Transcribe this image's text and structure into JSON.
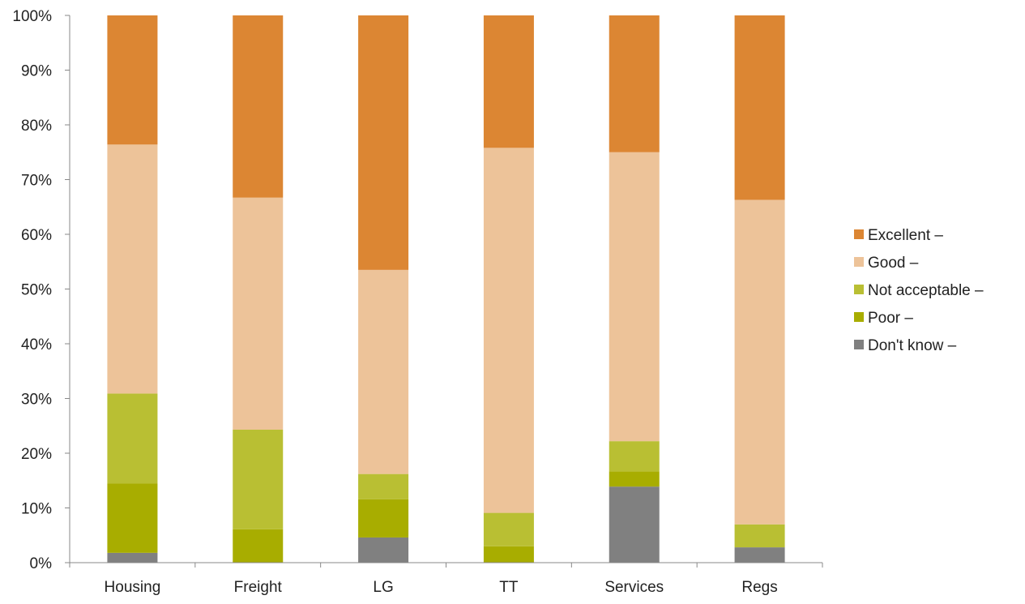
{
  "chart_data": {
    "type": "bar",
    "stacked": true,
    "percent": true,
    "title": "",
    "xlabel": "",
    "ylabel": "",
    "ylim": [
      0,
      100
    ],
    "yticks": [
      "0%",
      "10%",
      "20%",
      "30%",
      "40%",
      "50%",
      "60%",
      "70%",
      "80%",
      "90%",
      "100%"
    ],
    "grid": false,
    "legend_position": "right",
    "categories": [
      "Housing",
      "Freight",
      "LG",
      "TT",
      "Services",
      "Regs"
    ],
    "series": [
      {
        "name": "Don't know –",
        "color": "#808080",
        "values": [
          1.8,
          0,
          4.6,
          0,
          13.9,
          2.8
        ]
      },
      {
        "name": "Poor –",
        "color": "#a8ad00",
        "values": [
          12.7,
          6.1,
          7.0,
          3.0,
          2.8,
          0
        ]
      },
      {
        "name": "Not acceptable –",
        "color": "#b9bf33",
        "values": [
          16.4,
          18.2,
          4.6,
          6.1,
          5.5,
          4.2
        ]
      },
      {
        "name": "Good –",
        "color": "#edc399",
        "values": [
          45.5,
          42.4,
          37.3,
          66.7,
          52.8,
          59.3
        ]
      },
      {
        "name": "Excellent –",
        "color": "#dc8633",
        "values": [
          23.6,
          33.3,
          46.5,
          24.2,
          25.0,
          33.7
        ]
      }
    ],
    "legend_order": [
      "Excellent –",
      "Good –",
      "Not acceptable –",
      "Poor –",
      "Don't know –"
    ]
  }
}
